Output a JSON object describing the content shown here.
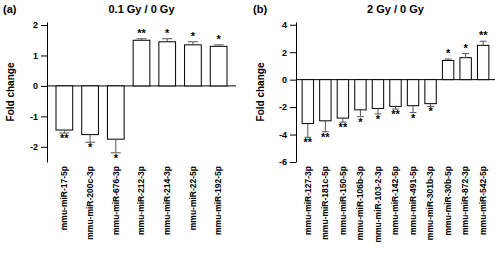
{
  "chart_data": [
    {
      "type": "bar",
      "panel_label": "(a)",
      "title": "0.1 Gy / 0 Gy",
      "y_label": "Fold change",
      "categories": [
        "mmu-miR-17-5p",
        "mmu-miR-200c-3p",
        "mmu-miR-676-3p",
        "mmu-miR-212-3p",
        "mmu-miR-214-3p",
        "mmu-miR-22-5p",
        "mmu-miR-192-5p"
      ],
      "values": [
        -1.45,
        -1.6,
        -1.75,
        1.5,
        1.45,
        1.35,
        1.3
      ],
      "errors": [
        0.1,
        0.25,
        0.45,
        0.05,
        0.1,
        0.1,
        0.05
      ],
      "annotations": [
        "**",
        "*",
        "*",
        "**",
        "*",
        "*",
        "*"
      ],
      "color": "#ffffff",
      "ylim": [
        -2.5,
        2.1
      ],
      "yticks": [
        -2,
        -1,
        0,
        1,
        2
      ]
    },
    {
      "type": "bar",
      "panel_label": "(b)",
      "title": "2 Gy / 0 Gy",
      "y_label": "Fold change",
      "categories": [
        "mmu-miR-127-3p",
        "mmu-miR-181c-5p",
        "mmu-miR-150-5p",
        "mmu-miR-106b-3p",
        "mmu-miR-103-2-3p",
        "mmu-miR-142-5p",
        "mmu-miR-491-5p",
        "mmu-miR-301b-3p",
        "mmu-miR-30b-5p",
        "mmu-miR-872-3p",
        "mmu-miR-542-5p"
      ],
      "values": [
        -3.2,
        -3.0,
        -2.8,
        -2.2,
        -2.1,
        -1.95,
        -1.9,
        -1.75,
        1.4,
        1.6,
        2.5
      ],
      "errors": [
        1.0,
        0.8,
        0.3,
        0.5,
        0.4,
        0.2,
        0.5,
        0.2,
        0.1,
        0.3,
        0.3
      ],
      "annotations": [
        "**",
        "**",
        "**",
        "*",
        "*",
        "**",
        "*",
        "*",
        "*",
        "*",
        "**"
      ],
      "color": "#ffffff",
      "ylim": [
        -6,
        4.2
      ],
      "yticks": [
        -6,
        -4,
        -2,
        0,
        2,
        4
      ]
    }
  ]
}
